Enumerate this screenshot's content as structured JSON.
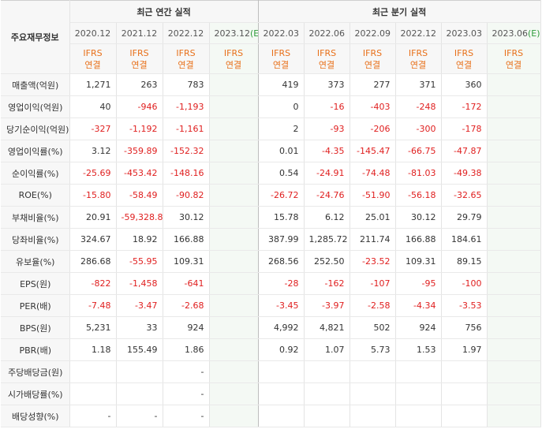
{
  "header": {
    "corner": "주요재무정보",
    "annual_title": "최근 연간 실적",
    "quarter_title": "최근 분기 실적",
    "periods": [
      {
        "label": "2020.12",
        "est": false
      },
      {
        "label": "2021.12",
        "est": false
      },
      {
        "label": "2022.12",
        "est": false
      },
      {
        "label": "2023.12(E)",
        "est": true
      },
      {
        "label": "2022.03",
        "est": false
      },
      {
        "label": "2022.06",
        "est": false
      },
      {
        "label": "2022.09",
        "est": false
      },
      {
        "label": "2022.12",
        "est": false
      },
      {
        "label": "2023.03",
        "est": false
      },
      {
        "label": "2023.06(E)",
        "est": true
      }
    ],
    "ifrs": "IFRS",
    "basis": "연결"
  },
  "colors": {
    "ifrs_accent": "#e8701a",
    "negative": "#e02020",
    "estimate_bg": "#f4f9f4",
    "header_bg": "#f7f7f7"
  },
  "rows": [
    {
      "label": "매출액(억원)",
      "values": [
        "1,271",
        "263",
        "783",
        "",
        "419",
        "373",
        "277",
        "371",
        "360",
        ""
      ],
      "group_start": true
    },
    {
      "label": "영업이익(억원)",
      "values": [
        "40",
        "-946",
        "-1,193",
        "",
        "0",
        "-16",
        "-403",
        "-248",
        "-172",
        ""
      ]
    },
    {
      "label": "당기순이익(억원)",
      "values": [
        "-327",
        "-1,192",
        "-1,161",
        "",
        "2",
        "-93",
        "-206",
        "-300",
        "-178",
        ""
      ]
    },
    {
      "label": "영업이익률(%)",
      "values": [
        "3.12",
        "-359.89",
        "-152.32",
        "",
        "0.01",
        "-4.35",
        "-145.47",
        "-66.75",
        "-47.87",
        ""
      ],
      "group_start": true
    },
    {
      "label": "순이익률(%)",
      "values": [
        "-25.69",
        "-453.42",
        "-148.16",
        "",
        "0.54",
        "-24.91",
        "-74.48",
        "-81.03",
        "-49.38",
        ""
      ]
    },
    {
      "label": "ROE(%)",
      "values": [
        "-15.80",
        "-58.49",
        "-90.82",
        "",
        "-26.72",
        "-24.76",
        "-51.90",
        "-56.18",
        "-32.65",
        ""
      ]
    },
    {
      "label": "부채비율(%)",
      "values": [
        "20.91",
        "-59,328.80",
        "30.12",
        "",
        "15.78",
        "6.12",
        "25.01",
        "30.12",
        "29.79",
        ""
      ],
      "group_start": true
    },
    {
      "label": "당좌비율(%)",
      "values": [
        "324.67",
        "18.92",
        "166.88",
        "",
        "387.99",
        "1,285.72",
        "211.74",
        "166.88",
        "184.61",
        ""
      ]
    },
    {
      "label": "유보율(%)",
      "values": [
        "286.68",
        "-55.95",
        "109.31",
        "",
        "268.56",
        "252.50",
        "-23.52",
        "109.31",
        "89.15",
        ""
      ]
    },
    {
      "label": "EPS(원)",
      "values": [
        "-822",
        "-1,458",
        "-641",
        "",
        "-28",
        "-162",
        "-107",
        "-95",
        "-100",
        ""
      ],
      "group_start": true
    },
    {
      "label": "PER(배)",
      "values": [
        "-7.48",
        "-3.47",
        "-2.68",
        "",
        "-3.45",
        "-3.97",
        "-2.58",
        "-4.34",
        "-3.53",
        ""
      ]
    },
    {
      "label": "BPS(원)",
      "values": [
        "5,231",
        "33",
        "924",
        "",
        "4,992",
        "4,821",
        "502",
        "924",
        "756",
        ""
      ]
    },
    {
      "label": "PBR(배)",
      "values": [
        "1.18",
        "155.49",
        "1.86",
        "",
        "0.92",
        "1.07",
        "5.73",
        "1.53",
        "1.97",
        ""
      ]
    },
    {
      "label": "주당배당금(원)",
      "values": [
        "",
        "",
        "-",
        "",
        "",
        "",
        "",
        "",
        "",
        ""
      ],
      "group_start": true
    },
    {
      "label": "시가배당률(%)",
      "values": [
        "",
        "",
        "-",
        "",
        "",
        "",
        "",
        "",
        "",
        ""
      ]
    },
    {
      "label": "배당성향(%)",
      "values": [
        "-",
        "-",
        "-",
        "",
        "",
        "",
        "",
        "",
        "",
        ""
      ]
    }
  ]
}
